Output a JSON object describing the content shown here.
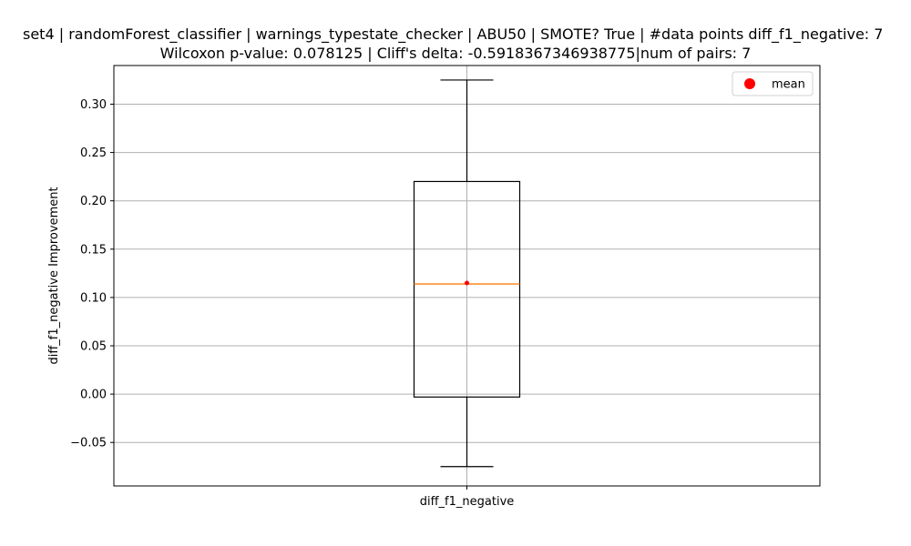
{
  "chart_data": {
    "type": "box",
    "title_line1": "set4 | randomForest_classifier | warnings_typestate_checker | ABU50 | SMOTE? True | #data points diff_f1_negative: 7",
    "title_line2": "Wilcoxon p-value: 0.078125 | Cliff's delta: -0.5918367346938775|num of pairs: 7",
    "ylabel": "diff_f1_negative Improvement",
    "categories": [
      "diff_f1_negative"
    ],
    "ylim": [
      -0.095,
      0.34
    ],
    "yticks": [
      -0.05,
      0.0,
      0.05,
      0.1,
      0.15,
      0.2,
      0.25,
      0.3
    ],
    "ytick_labels": [
      "−0.05",
      "0.00",
      "0.05",
      "0.10",
      "0.15",
      "0.20",
      "0.25",
      "0.30"
    ],
    "grid": true,
    "legend": {
      "placement": "top-right",
      "entries": [
        "mean"
      ]
    },
    "boxes": [
      {
        "category": "diff_f1_negative",
        "whisker_low": -0.075,
        "q1": -0.003,
        "median": 0.114,
        "q3": 0.22,
        "whisker_high": 0.325,
        "mean": 0.115
      }
    ],
    "colors": {
      "median": "#ff7f0e",
      "mean": "#ff0000",
      "box": "#000000",
      "grid": "#b0b0b0"
    }
  }
}
